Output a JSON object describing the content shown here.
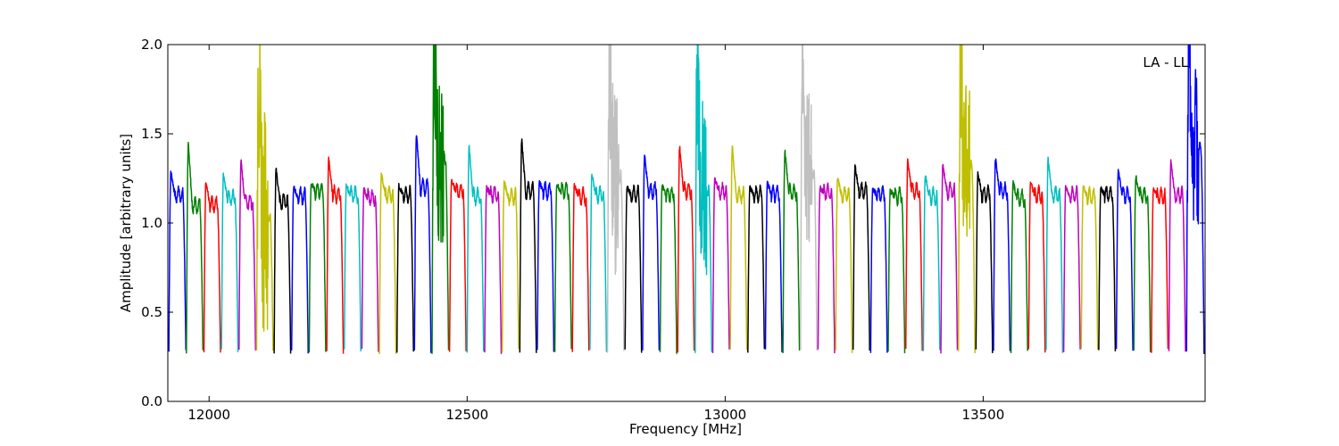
{
  "chart_data": {
    "type": "line",
    "title": "",
    "annotation": "LA - LL",
    "xlabel": "Frequency [MHz]",
    "ylabel": "Amplitude [arbitrary units]",
    "xlim": [
      11920,
      13930
    ],
    "ylim": [
      0.0,
      2.0
    ],
    "x_ticks": [
      12000,
      12500,
      13000,
      13500
    ],
    "x_tick_labels": [
      "12000",
      "12500",
      "13000",
      "13500"
    ],
    "y_ticks": [
      0.0,
      0.5,
      1.0,
      1.5,
      2.0
    ],
    "y_tick_labels": [
      "0.0",
      "0.5",
      "1.0",
      "1.5",
      "2.0"
    ],
    "grid": false,
    "legend": "none",
    "color_cycle": [
      "#0000ff",
      "#008000",
      "#ff0000",
      "#00bfbf",
      "#bf00bf",
      "#bfbf00",
      "#000000"
    ],
    "flagged_color": "#c0c0c0",
    "band_edge_level": 0.28,
    "series": [
      {
        "x_start": 11922,
        "x_end": 11955,
        "peak": 1.29,
        "level": 1.16,
        "color": "#0000ff"
      },
      {
        "x_start": 11956,
        "x_end": 11988,
        "peak": 1.45,
        "level": 1.1,
        "color": "#008000"
      },
      {
        "x_start": 11990,
        "x_end": 12022,
        "peak": 1.24,
        "level": 1.1,
        "color": "#ff0000"
      },
      {
        "x_start": 12024,
        "x_end": 12056,
        "peak": 1.28,
        "level": 1.14,
        "color": "#00bfbf"
      },
      {
        "x_start": 12058,
        "x_end": 12090,
        "peak": 1.35,
        "level": 1.12,
        "color": "#bf00bf"
      },
      {
        "x_start": 12092,
        "x_end": 12124,
        "peak": 2.0,
        "level": 1.05,
        "color": "#bfbf00",
        "noisy": true
      },
      {
        "x_start": 12126,
        "x_end": 12158,
        "peak": 1.3,
        "level": 1.12,
        "color": "#000000"
      },
      {
        "x_start": 12160,
        "x_end": 12192,
        "peak": 1.2,
        "level": 1.15,
        "color": "#0000ff"
      },
      {
        "x_start": 12194,
        "x_end": 12226,
        "peak": 1.23,
        "level": 1.18,
        "color": "#008000"
      },
      {
        "x_start": 12228,
        "x_end": 12260,
        "peak": 1.36,
        "level": 1.16,
        "color": "#ff0000"
      },
      {
        "x_start": 12262,
        "x_end": 12294,
        "peak": 1.21,
        "level": 1.16,
        "color": "#00bfbf"
      },
      {
        "x_start": 12296,
        "x_end": 12328,
        "peak": 1.19,
        "level": 1.14,
        "color": "#bf00bf"
      },
      {
        "x_start": 12330,
        "x_end": 12362,
        "peak": 1.28,
        "level": 1.16,
        "color": "#bfbf00"
      },
      {
        "x_start": 12364,
        "x_end": 12396,
        "peak": 1.21,
        "level": 1.16,
        "color": "#000000"
      },
      {
        "x_start": 12398,
        "x_end": 12430,
        "peak": 1.5,
        "level": 1.2,
        "color": "#0000ff"
      },
      {
        "x_start": 12432,
        "x_end": 12464,
        "peak": 2.0,
        "level": 1.35,
        "color": "#008000",
        "noisy": true
      },
      {
        "x_start": 12466,
        "x_end": 12498,
        "peak": 1.24,
        "level": 1.18,
        "color": "#ff0000"
      },
      {
        "x_start": 12500,
        "x_end": 12532,
        "peak": 1.43,
        "level": 1.15,
        "color": "#00bfbf"
      },
      {
        "x_start": 12534,
        "x_end": 12566,
        "peak": 1.2,
        "level": 1.16,
        "color": "#bf00bf"
      },
      {
        "x_start": 12568,
        "x_end": 12600,
        "peak": 1.23,
        "level": 1.15,
        "color": "#bfbf00"
      },
      {
        "x_start": 12602,
        "x_end": 12634,
        "peak": 1.47,
        "level": 1.18,
        "color": "#000000"
      },
      {
        "x_start": 12636,
        "x_end": 12668,
        "peak": 1.23,
        "level": 1.18,
        "color": "#0000ff"
      },
      {
        "x_start": 12670,
        "x_end": 12702,
        "peak": 1.22,
        "level": 1.18,
        "color": "#008000"
      },
      {
        "x_start": 12704,
        "x_end": 12736,
        "peak": 1.22,
        "level": 1.15,
        "color": "#ff0000"
      },
      {
        "x_start": 12738,
        "x_end": 12770,
        "peak": 1.27,
        "level": 1.16,
        "color": "#00bfbf"
      },
      {
        "x_start": 12772,
        "x_end": 12804,
        "peak": 2.0,
        "level": 1.25,
        "color": "#c0c0c0",
        "noisy": true
      },
      {
        "x_start": 12806,
        "x_end": 12838,
        "peak": 1.2,
        "level": 1.16,
        "color": "#000000"
      },
      {
        "x_start": 12840,
        "x_end": 12872,
        "peak": 1.38,
        "level": 1.18,
        "color": "#0000ff"
      },
      {
        "x_start": 12874,
        "x_end": 12906,
        "peak": 1.21,
        "level": 1.16,
        "color": "#008000"
      },
      {
        "x_start": 12908,
        "x_end": 12940,
        "peak": 1.43,
        "level": 1.18,
        "color": "#ff0000"
      },
      {
        "x_start": 12942,
        "x_end": 12974,
        "peak": 2.0,
        "level": 1.2,
        "color": "#00bfbf",
        "noisy": true
      },
      {
        "x_start": 12976,
        "x_end": 13008,
        "peak": 1.25,
        "level": 1.18,
        "color": "#bf00bf"
      },
      {
        "x_start": 13010,
        "x_end": 13042,
        "peak": 1.43,
        "level": 1.16,
        "color": "#bfbf00"
      },
      {
        "x_start": 13044,
        "x_end": 13076,
        "peak": 1.2,
        "level": 1.16,
        "color": "#000000"
      },
      {
        "x_start": 13078,
        "x_end": 13110,
        "peak": 1.23,
        "level": 1.16,
        "color": "#0000ff"
      },
      {
        "x_start": 13112,
        "x_end": 13144,
        "peak": 1.41,
        "level": 1.17,
        "color": "#008000"
      },
      {
        "x_start": 13146,
        "x_end": 13178,
        "peak": 2.0,
        "level": 1.3,
        "color": "#c0c0c0",
        "noisy": true
      },
      {
        "x_start": 13180,
        "x_end": 13212,
        "peak": 1.2,
        "level": 1.17,
        "color": "#bf00bf"
      },
      {
        "x_start": 13214,
        "x_end": 13246,
        "peak": 1.26,
        "level": 1.16,
        "color": "#bfbf00"
      },
      {
        "x_start": 13248,
        "x_end": 13280,
        "peak": 1.32,
        "level": 1.18,
        "color": "#000000"
      },
      {
        "x_start": 13282,
        "x_end": 13314,
        "peak": 1.19,
        "level": 1.16,
        "color": "#0000ff"
      },
      {
        "x_start": 13316,
        "x_end": 13348,
        "peak": 1.18,
        "level": 1.15,
        "color": "#008000"
      },
      {
        "x_start": 13350,
        "x_end": 13382,
        "peak": 1.35,
        "level": 1.18,
        "color": "#ff0000"
      },
      {
        "x_start": 13384,
        "x_end": 13416,
        "peak": 1.27,
        "level": 1.15,
        "color": "#00bfbf"
      },
      {
        "x_start": 13418,
        "x_end": 13450,
        "peak": 1.33,
        "level": 1.18,
        "color": "#bf00bf"
      },
      {
        "x_start": 13452,
        "x_end": 13484,
        "peak": 2.0,
        "level": 1.3,
        "color": "#bfbf00",
        "noisy": true
      },
      {
        "x_start": 13486,
        "x_end": 13518,
        "peak": 1.28,
        "level": 1.16,
        "color": "#000000"
      },
      {
        "x_start": 13520,
        "x_end": 13552,
        "peak": 1.37,
        "level": 1.18,
        "color": "#0000ff"
      },
      {
        "x_start": 13554,
        "x_end": 13586,
        "peak": 1.23,
        "level": 1.14,
        "color": "#008000"
      },
      {
        "x_start": 13588,
        "x_end": 13620,
        "peak": 1.23,
        "level": 1.16,
        "color": "#ff0000"
      },
      {
        "x_start": 13622,
        "x_end": 13654,
        "peak": 1.36,
        "level": 1.16,
        "color": "#00bfbf"
      },
      {
        "x_start": 13656,
        "x_end": 13688,
        "peak": 1.2,
        "level": 1.16,
        "color": "#bf00bf"
      },
      {
        "x_start": 13690,
        "x_end": 13722,
        "peak": 1.21,
        "level": 1.15,
        "color": "#bfbf00"
      },
      {
        "x_start": 13724,
        "x_end": 13756,
        "peak": 1.2,
        "level": 1.16,
        "color": "#000000"
      },
      {
        "x_start": 13758,
        "x_end": 13790,
        "peak": 1.3,
        "level": 1.16,
        "color": "#0000ff"
      },
      {
        "x_start": 13792,
        "x_end": 13824,
        "peak": 1.26,
        "level": 1.16,
        "color": "#008000"
      },
      {
        "x_start": 13826,
        "x_end": 13858,
        "peak": 1.2,
        "level": 1.15,
        "color": "#ff0000"
      },
      {
        "x_start": 13860,
        "x_end": 13892,
        "peak": 1.35,
        "level": 1.16,
        "color": "#bf00bf"
      },
      {
        "x_start": 13894,
        "x_end": 13928,
        "peak": 2.0,
        "level": 1.4,
        "color": "#0000ff",
        "noisy": true
      }
    ]
  }
}
